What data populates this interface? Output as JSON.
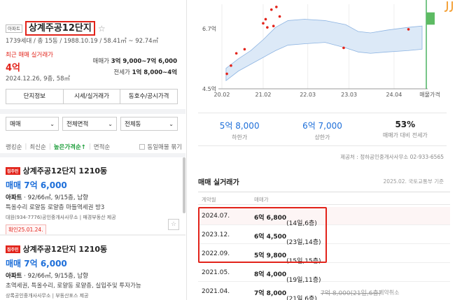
{
  "complex": {
    "badge": "아파트",
    "title": "상계주공12단지",
    "meta": "1739세대 / 총 15동 / 1988.10.19 / 58.41㎡ ~ 92.74㎡",
    "recent_label": "최근 매매 실거래가",
    "recent_price": "4억",
    "recent_date": "2024.12.26, 9층, 58㎡",
    "sale_range_label": "매매가",
    "sale_range": "3억 9,000~7억 6,000",
    "jeonse_range_label": "전세가",
    "jeonse_range": "1억 8,000~4억"
  },
  "tabs": [
    "단지정보",
    "시세/실거래가",
    "동호수/공시가격"
  ],
  "filters": [
    "매매",
    "전체면적",
    "전체동"
  ],
  "sort": {
    "options": [
      "랭킹순",
      "최신순",
      "높은가격순↑",
      "면적순"
    ],
    "active_index": 2,
    "same_listing_label": "동일매물 묶기"
  },
  "listings": [
    {
      "tag": "집주인",
      "title": "상계주공12단지 1210동",
      "price": "매매 7억 6,000",
      "type": "아파트",
      "spec": " · 92/66㎡, 9/15층, 남향",
      "desc": "특올수리 로얄동 로얄층 마들역세권 방3",
      "agent": "대원(934-7776)공인중개사사무소 | 매경부동산 제공",
      "confirm": "확인25.01.24."
    },
    {
      "tag": "집주인",
      "title": "상계주공12단지 1210동",
      "price": "매매 7억 6,000",
      "type": "아파트",
      "spec": " · 92/66㎡, 9/15층, 남향",
      "desc": "초역세권, 특올수리, 로얄동 로얄층, 실입주및 투자가능",
      "agent": "상록공인중개사사무소 | 부동산포스 제공",
      "confirm": ""
    }
  ],
  "chart_data": {
    "type": "scatter",
    "title": "",
    "x_tick_labels": [
      "20.02",
      "21.02",
      "22.03",
      "23.03",
      "24.04",
      "매물가격"
    ],
    "y_tick_labels": [
      "6.7억",
      "4.5억"
    ],
    "ylim": [
      4.5,
      7.6
    ],
    "points": [
      {
        "x": 2020.12,
        "y": 5.05
      },
      {
        "x": 2020.22,
        "y": 5.35
      },
      {
        "x": 2020.35,
        "y": 5.8
      },
      {
        "x": 2020.55,
        "y": 5.95
      },
      {
        "x": 2021.0,
        "y": 6.9
      },
      {
        "x": 2021.06,
        "y": 7.05
      },
      {
        "x": 2021.1,
        "y": 6.75
      },
      {
        "x": 2021.2,
        "y": 7.4
      },
      {
        "x": 2021.25,
        "y": 6.8
      },
      {
        "x": 2021.32,
        "y": 7.5
      },
      {
        "x": 2021.4,
        "y": 7.15
      },
      {
        "x": 2022.95,
        "y": 6.0
      },
      {
        "x": 2024.52,
        "y": 6.68
      }
    ],
    "band": {
      "x": [
        2020.1,
        2020.4,
        2020.7,
        2021.0,
        2021.3,
        2021.6,
        2022.0,
        2022.5,
        2023.0,
        2023.3,
        2023.6,
        2024.0,
        2024.5,
        2024.85
      ],
      "low": [
        4.8,
        5.15,
        5.4,
        5.65,
        5.9,
        6.1,
        6.15,
        6.2,
        6.0,
        5.85,
        5.8,
        5.85,
        5.9,
        5.95
      ],
      "high": [
        5.25,
        5.6,
        5.9,
        6.3,
        6.75,
        7.0,
        7.05,
        7.0,
        6.85,
        6.6,
        6.55,
        6.65,
        6.75,
        6.8
      ]
    },
    "listing_bar": {
      "low": 6.85,
      "high": 7.3
    },
    "marker_line_color": "#1e9e3b",
    "point_color": "#e2231a",
    "band_color": "#dce9f7"
  },
  "stats": [
    {
      "value": "5억 8,000",
      "label": "하한가"
    },
    {
      "value": "6억 7,000",
      "label": "상한가"
    },
    {
      "value": "53%",
      "label": "매매가 대비 전세가"
    }
  ],
  "stats_source": "제공처 : 정하공인중개사사무소 02-933-6565",
  "deals": {
    "title": "매매 실거래가",
    "note": "2025.02. 국토교통부 기준",
    "header": [
      "계약월",
      "매매가"
    ],
    "rows": [
      {
        "month": "2024.07.",
        "price": "6억 6,800",
        "detail": "(14일,6층)",
        "highlight": true,
        "strike": "",
        "cancel": ""
      },
      {
        "month": "2023.12.",
        "price": "6억 4,500",
        "detail": "(23일,14층)",
        "highlight": false,
        "strike": "",
        "cancel": ""
      },
      {
        "month": "2022.09.",
        "price": "5억 9,800",
        "detail": "(15일,15층)",
        "highlight": false,
        "strike": "",
        "cancel": ""
      },
      {
        "month": "2021.05.",
        "price": "8억 4,000",
        "detail": "(19일,11층)",
        "highlight": false,
        "strike": "",
        "cancel": ""
      },
      {
        "month": "2021.04.",
        "price": "7억 8,000",
        "detail": "(21일,6층)",
        "highlight": false,
        "strike": "7억 8,000(21일,6층)",
        "cancel": "계약취소"
      }
    ]
  }
}
